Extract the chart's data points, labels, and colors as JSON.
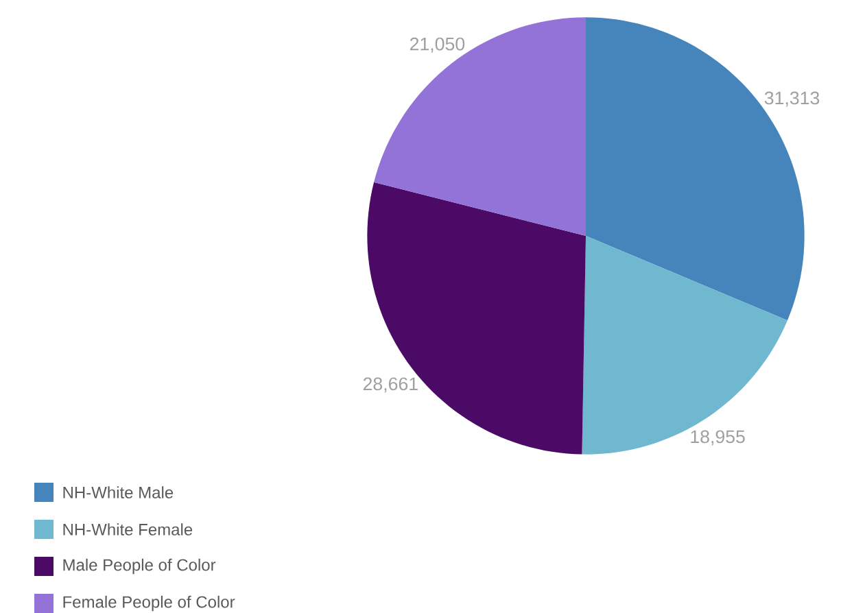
{
  "chart_data": {
    "type": "pie",
    "categories": [
      "NH-White Male",
      "NH-White Female",
      "Male People of Color",
      "Female People of Color"
    ],
    "values": [
      31313,
      18955,
      28661,
      21050
    ],
    "value_labels": [
      "31,313",
      "18,955",
      "28,661",
      "21,050"
    ],
    "colors": [
      "#4585bc",
      "#6fb8cf",
      "#4a0a65",
      "#9373d7"
    ],
    "legend": "bottom left"
  }
}
